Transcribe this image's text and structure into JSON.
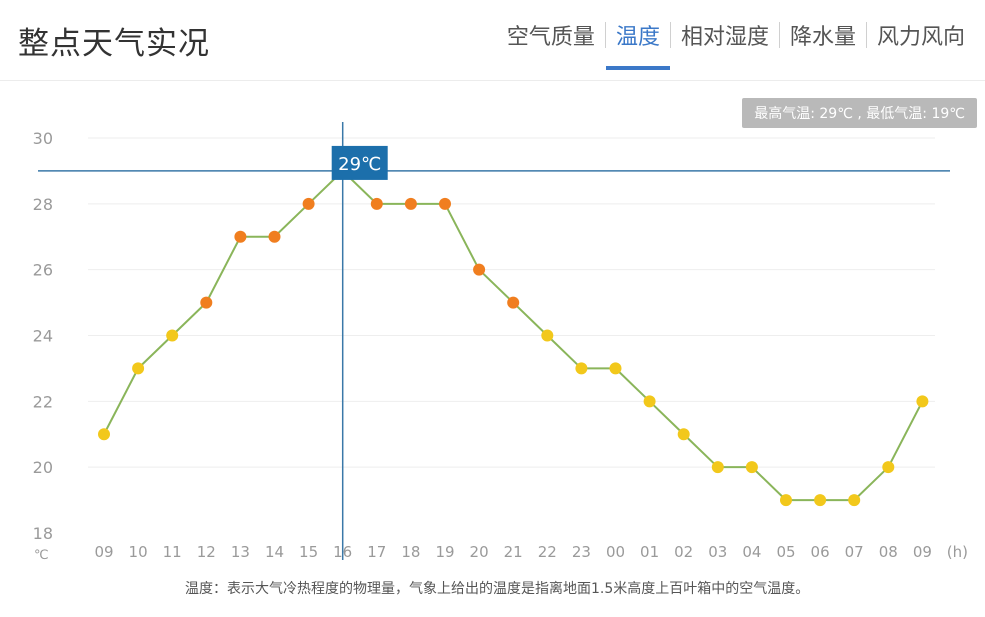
{
  "header": {
    "title": "整点天气实况",
    "tabs": [
      {
        "label": "空气质量",
        "active": false
      },
      {
        "label": "温度",
        "active": true
      },
      {
        "label": "相对湿度",
        "active": false
      },
      {
        "label": "降水量",
        "active": false
      },
      {
        "label": "风力风向",
        "active": false
      }
    ]
  },
  "badge_text": "最高气温: 29℃ , 最低气温: 19℃",
  "tooltip_text": "29℃",
  "unit_label": "℃",
  "footnote": "温度：表示大气冷热程度的物理量，气象上给出的温度是指离地面1.5米高度上百叶箱中的空气温度。",
  "colors": {
    "line": "#8ab55a",
    "point_warm": "#f07e1f",
    "point_cool": "#f2c81b",
    "crosshair": "#3a78a8",
    "tooltip_bg": "#1c6fab",
    "tab_active": "#3b78c8"
  },
  "chart_data": {
    "type": "line",
    "x": [
      "09",
      "10",
      "11",
      "12",
      "13",
      "14",
      "15",
      "16",
      "17",
      "18",
      "19",
      "20",
      "21",
      "22",
      "23",
      "00",
      "01",
      "02",
      "03",
      "04",
      "05",
      "06",
      "07",
      "08",
      "09"
    ],
    "x_unit_label": "(h)",
    "series": [
      {
        "values": [
          21,
          23,
          24,
          25,
          27,
          27,
          28,
          29,
          28,
          28,
          28,
          26,
          25,
          24,
          23,
          23,
          22,
          21,
          20,
          20,
          19,
          19,
          19,
          20,
          22
        ]
      }
    ],
    "yticks": [
      18,
      20,
      22,
      24,
      26,
      28,
      30
    ],
    "ylim": [
      18,
      30
    ],
    "highlight_index": 7,
    "highlight_value": 29,
    "point_color_threshold": 25
  }
}
